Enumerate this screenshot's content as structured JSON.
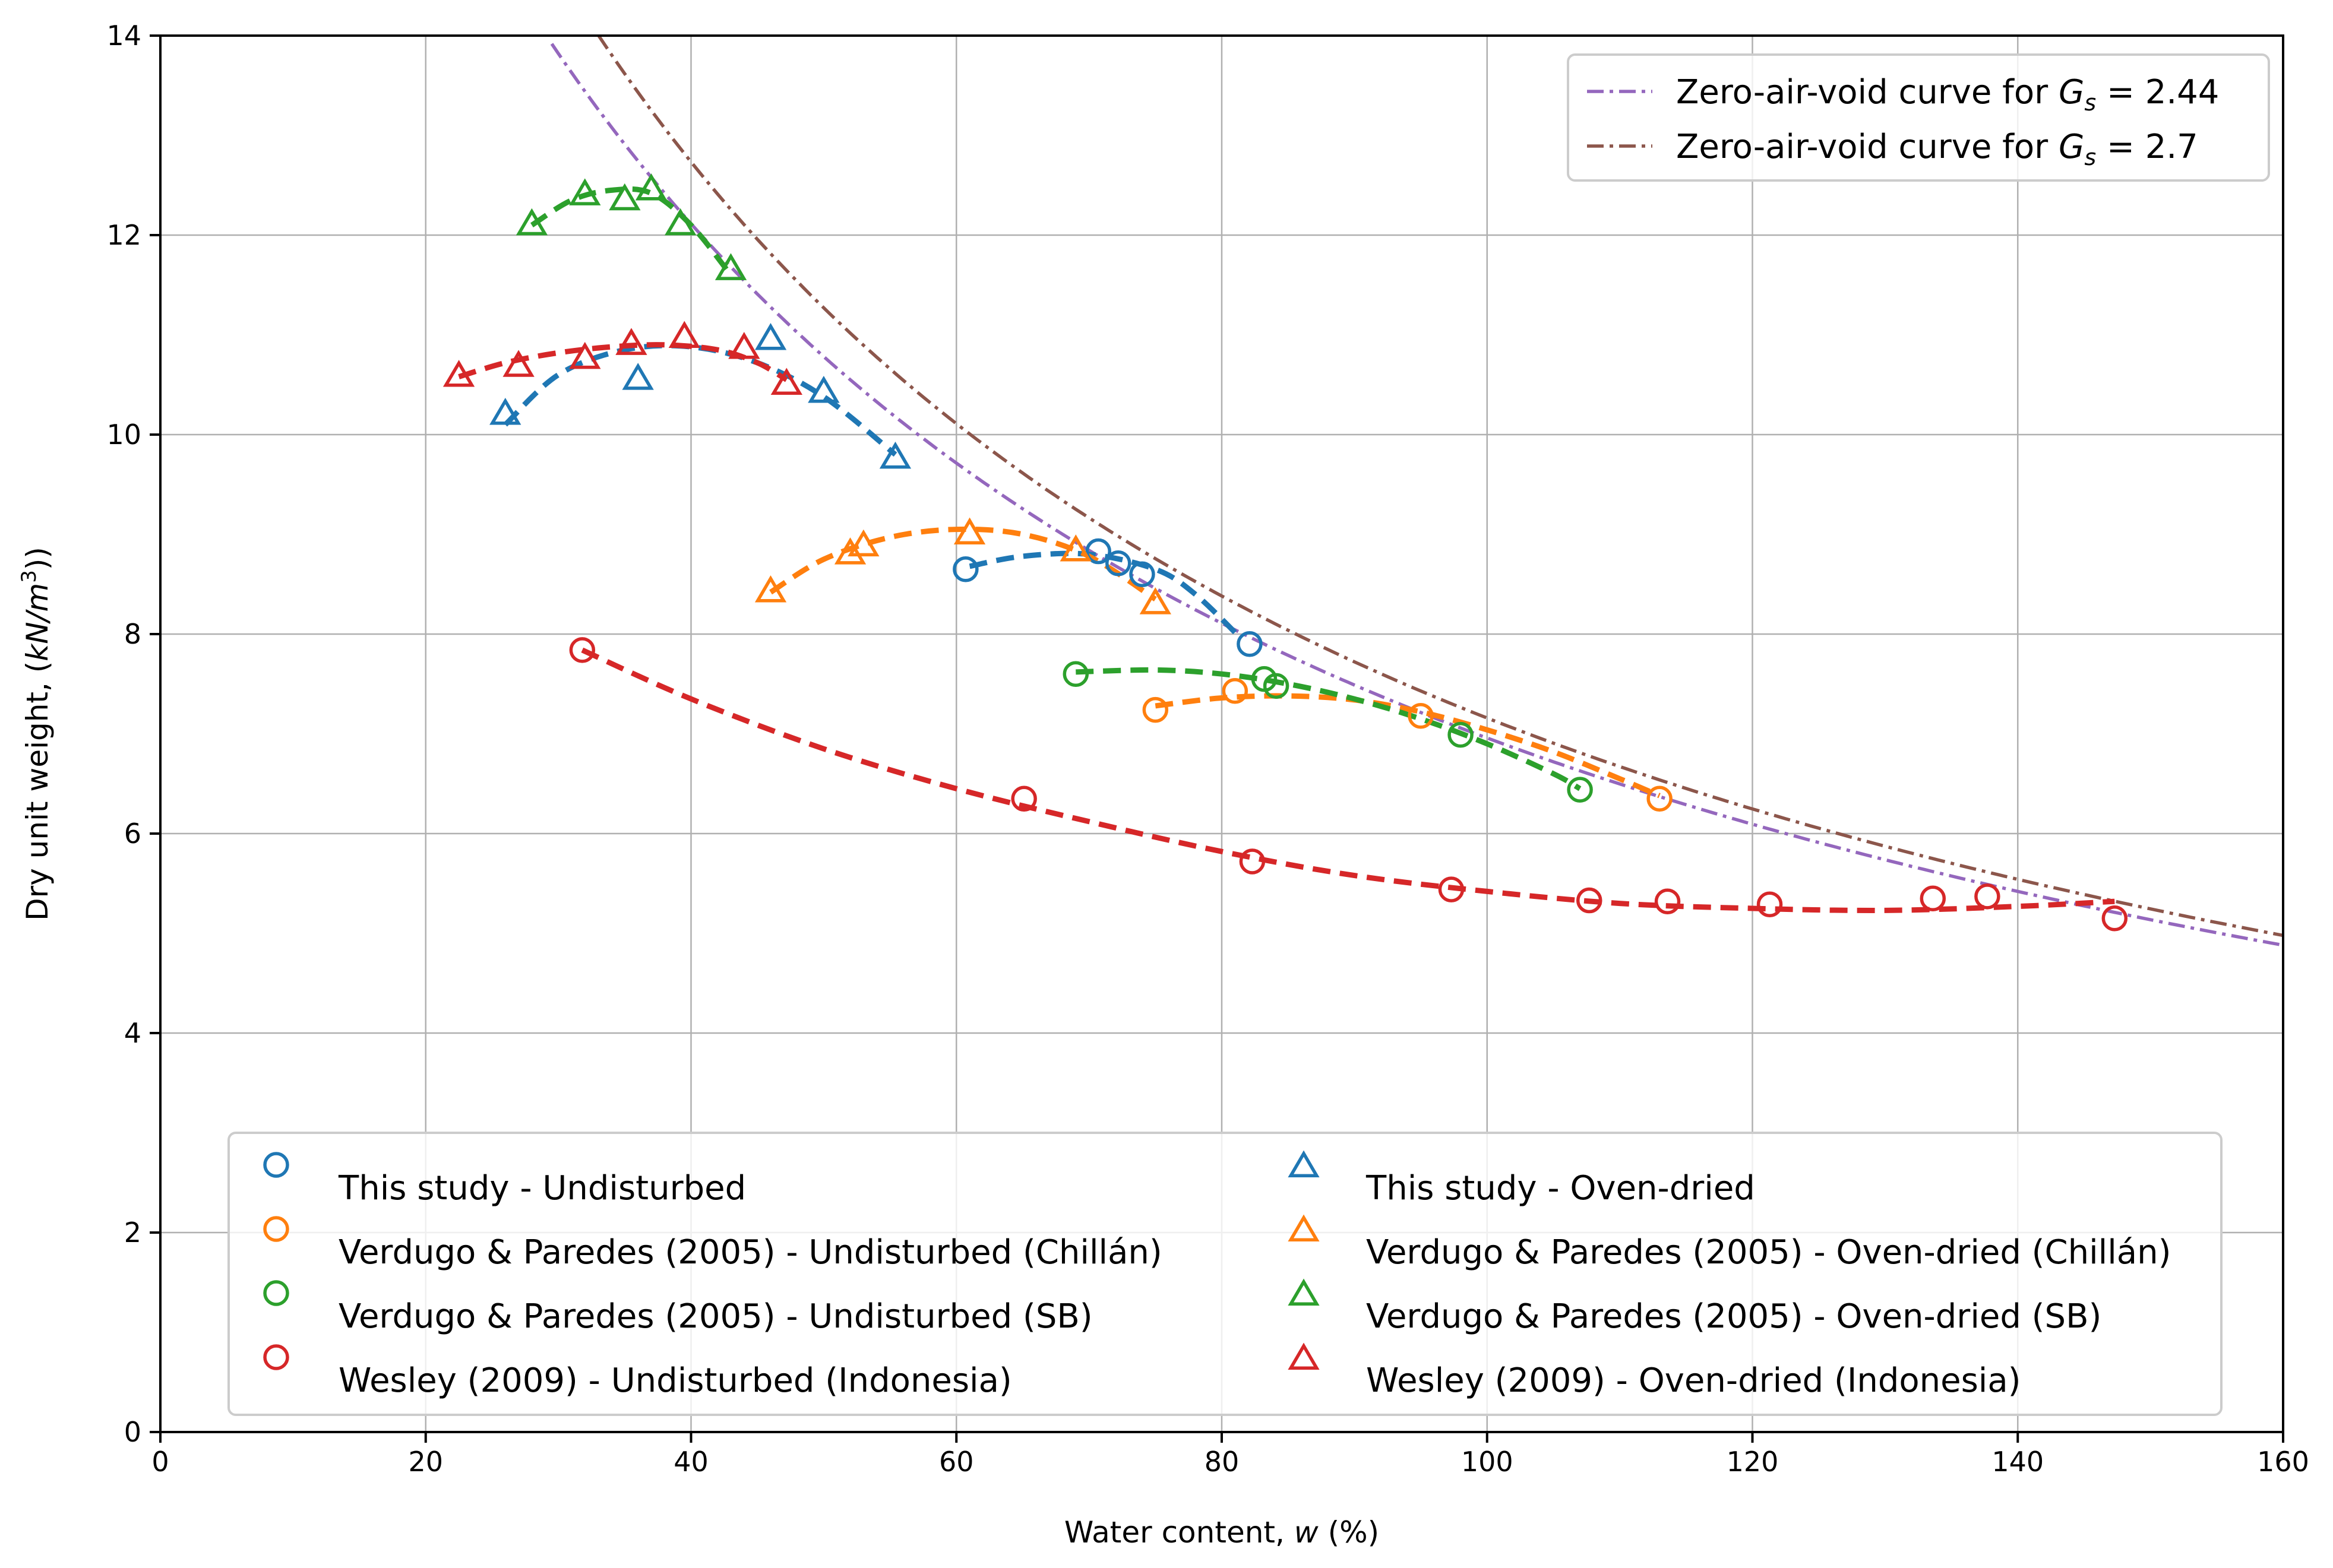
{
  "chart_data": {
    "type": "scatter",
    "xlabel_prefix": "Water content, ",
    "xlabel_var": "w",
    "xlabel_suffix": " (%)",
    "ylabel_prefix": "Dry unit weight, (",
    "ylabel_unit": "kN/m",
    "ylabel_exp": "3",
    "ylabel_suffix": "))",
    "xlim": [
      0,
      160
    ],
    "ylim": [
      0,
      14
    ],
    "xticks": [
      0,
      20,
      40,
      60,
      80,
      100,
      120,
      140,
      160
    ],
    "yticks": [
      0,
      2,
      4,
      6,
      8,
      10,
      12,
      14
    ],
    "grid": true,
    "zav_curves": [
      {
        "name": "Zero-air-void curve for Gs = 2.44",
        "text_prefix": "Zero-air-void curve for ",
        "text_var": "G",
        "text_sub": "s",
        "text_suffix": " = 2.44",
        "Gs": 2.44,
        "color": "#9467bd",
        "x_from": 29.5,
        "x_to": 160
      },
      {
        "name": "Zero-air-void curve for Gs = 2.7",
        "text_prefix": "Zero-air-void curve for ",
        "text_var": "G",
        "text_sub": "s",
        "text_suffix": " = 2.7",
        "Gs": 2.7,
        "color": "#8c564b",
        "x_from": 33,
        "x_to": 160
      }
    ],
    "series": [
      {
        "name": "This study - Undisturbed",
        "marker": "circle",
        "color": "#1f77b4",
        "x": [
          60.7,
          70.7,
          72.2,
          74,
          82.1
        ],
        "y": [
          8.65,
          8.83,
          8.71,
          8.6,
          7.9
        ],
        "fit_x": [
          61,
          65,
          70,
          75,
          78,
          81.5
        ],
        "fit_y": [
          8.68,
          8.78,
          8.8,
          8.65,
          8.4,
          7.95
        ]
      },
      {
        "name": "Verdugo & Paredes (2005) - Undisturbed (Chillán)",
        "marker": "circle",
        "color": "#ff7f0e",
        "x": [
          75,
          81,
          95,
          113
        ],
        "y": [
          7.24,
          7.43,
          7.18,
          6.35
        ],
        "fit_x": [
          75,
          80,
          85,
          90,
          95,
          100,
          105,
          110,
          113
        ],
        "fit_y": [
          7.28,
          7.36,
          7.38,
          7.34,
          7.22,
          7.04,
          6.82,
          6.55,
          6.38
        ]
      },
      {
        "name": "Verdugo & Paredes (2005) - Undisturbed (SB)",
        "marker": "circle",
        "color": "#2ca02c",
        "x": [
          69,
          83.2,
          84.1,
          98,
          107
        ],
        "y": [
          7.6,
          7.55,
          7.48,
          6.99,
          6.44
        ],
        "fit_x": [
          69,
          75,
          80,
          85,
          90,
          95,
          100,
          105,
          107
        ],
        "fit_y": [
          7.62,
          7.64,
          7.6,
          7.5,
          7.35,
          7.15,
          6.9,
          6.6,
          6.45
        ]
      },
      {
        "name": "Wesley (2009) - Undisturbed (Indonesia)",
        "marker": "circle",
        "color": "#d62728",
        "x": [
          31.8,
          65.1,
          82.3,
          97.3,
          107.7,
          113.6,
          121.3,
          133.6,
          137.7,
          147.3
        ],
        "y": [
          7.84,
          6.35,
          5.72,
          5.44,
          5.33,
          5.32,
          5.29,
          5.35,
          5.37,
          5.15
        ],
        "fit_x": [
          31.8,
          40,
          50,
          60,
          70,
          80,
          90,
          100,
          110,
          120,
          130,
          140,
          147.3
        ],
        "fit_y": [
          7.84,
          7.35,
          6.85,
          6.45,
          6.12,
          5.82,
          5.58,
          5.42,
          5.3,
          5.25,
          5.23,
          5.27,
          5.32
        ]
      },
      {
        "name": "This study - Oven-dried",
        "marker": "triangle",
        "color": "#1f77b4",
        "x": [
          26,
          36,
          46,
          50,
          55.4
        ],
        "y": [
          10.2,
          10.55,
          10.95,
          10.42,
          9.76
        ],
        "fit_x": [
          26,
          30,
          35,
          40,
          45,
          50,
          55.4
        ],
        "fit_y": [
          10.1,
          10.6,
          10.85,
          10.88,
          10.72,
          10.38,
          9.8
        ]
      },
      {
        "name": "Verdugo & Paredes (2005) - Oven-dried (Chillán)",
        "marker": "triangle",
        "color": "#ff7f0e",
        "x": [
          46,
          52,
          53,
          61,
          69,
          75
        ],
        "y": [
          8.42,
          8.8,
          8.88,
          9.0,
          8.83,
          8.3
        ],
        "fit_x": [
          46,
          50,
          55,
          60,
          65,
          70,
          75
        ],
        "fit_y": [
          8.42,
          8.75,
          8.97,
          9.05,
          9.0,
          8.78,
          8.35
        ]
      },
      {
        "name": "Verdugo & Paredes (2005) - Oven-dried (SB)",
        "marker": "triangle",
        "color": "#2ca02c",
        "x": [
          28,
          32,
          35,
          37,
          39.2,
          43
        ],
        "y": [
          12.1,
          12.4,
          12.35,
          12.45,
          12.1,
          11.65
        ],
        "fit_x": [
          28,
          31,
          34,
          37,
          40,
          43
        ],
        "fit_y": [
          12.1,
          12.35,
          12.45,
          12.42,
          12.1,
          11.6
        ]
      },
      {
        "name": "Wesley (2009) - Oven-dried (Indonesia)",
        "marker": "triangle",
        "color": "#d62728",
        "x": [
          22.5,
          27,
          32,
          35.5,
          39.5,
          44,
          47.2
        ],
        "y": [
          10.58,
          10.68,
          10.76,
          10.9,
          10.97,
          10.86,
          10.5
        ],
        "fit_x": [
          22.5,
          26,
          30,
          34,
          38,
          42,
          45,
          47.2
        ],
        "fit_y": [
          10.58,
          10.72,
          10.82,
          10.88,
          10.9,
          10.85,
          10.72,
          10.55
        ]
      }
    ]
  }
}
